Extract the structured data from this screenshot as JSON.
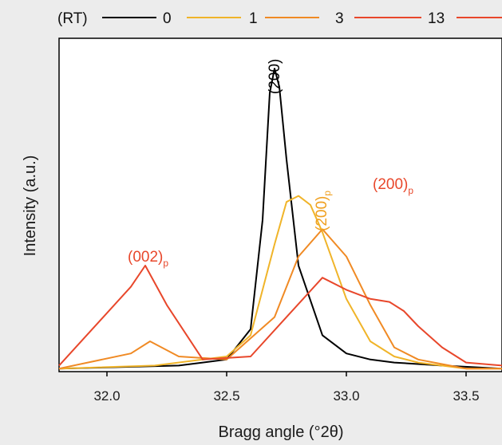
{
  "chart_data": {
    "type": "line",
    "title": "",
    "xlabel": "Bragg angle (°2θ)",
    "ylabel": "Intensity (a.u.)",
    "xlim": [
      31.8,
      33.65
    ],
    "ylim": [
      0,
      1.1
    ],
    "xticks": [
      "32.0",
      "32.5",
      "33.0",
      "33.5"
    ],
    "xtick_values": [
      32.0,
      32.5,
      33.0,
      33.5
    ],
    "legend_placement": "top (above plot)",
    "grid": false,
    "legend_title": "(RT)",
    "series": [
      {
        "name": "0",
        "color": "#000000",
        "x": [
          31.8,
          32.3,
          32.5,
          32.6,
          32.65,
          32.68,
          32.7,
          32.72,
          32.75,
          32.8,
          32.9,
          33.0,
          33.1,
          33.2,
          33.4,
          33.65
        ],
        "y": [
          0.01,
          0.02,
          0.04,
          0.14,
          0.5,
          0.92,
          1.0,
          0.94,
          0.7,
          0.35,
          0.12,
          0.06,
          0.04,
          0.03,
          0.02,
          0.01
        ]
      },
      {
        "name": "1",
        "color": "#F0B429",
        "x": [
          31.8,
          32.2,
          32.5,
          32.6,
          32.7,
          32.75,
          32.8,
          32.85,
          32.9,
          33.0,
          33.1,
          33.2,
          33.3,
          33.5,
          33.65
        ],
        "y": [
          0.01,
          0.02,
          0.05,
          0.12,
          0.42,
          0.56,
          0.58,
          0.55,
          0.46,
          0.24,
          0.1,
          0.05,
          0.03,
          0.01,
          0.01
        ]
      },
      {
        "name": "3",
        "color": "#F08A24",
        "x": [
          31.8,
          32.1,
          32.18,
          32.3,
          32.5,
          32.7,
          32.8,
          32.9,
          33.0,
          33.1,
          33.2,
          33.3,
          33.5,
          33.65
        ],
        "y": [
          0.01,
          0.06,
          0.1,
          0.05,
          0.04,
          0.18,
          0.38,
          0.47,
          0.38,
          0.22,
          0.08,
          0.04,
          0.01,
          0.01
        ]
      },
      {
        "name": "13",
        "color": "#E8472B",
        "x": [
          31.8,
          32.1,
          32.16,
          32.25,
          32.4,
          32.6,
          32.75,
          32.9,
          33.0,
          33.1,
          33.18,
          33.24,
          33.3,
          33.4,
          33.5,
          33.65
        ],
        "y": [
          0.02,
          0.28,
          0.35,
          0.22,
          0.04,
          0.05,
          0.18,
          0.31,
          0.27,
          0.24,
          0.23,
          0.2,
          0.15,
          0.08,
          0.03,
          0.02
        ]
      }
    ],
    "annotations": [
      {
        "text": "(200)",
        "sub": "",
        "color": "#000000"
      },
      {
        "text": "(200)",
        "sub": "p",
        "color": "#F0A020"
      },
      {
        "text": "(200)",
        "sub": "p",
        "color": "#E8472B"
      },
      {
        "text": "(002)",
        "sub": "p",
        "color": "#E8472B"
      }
    ]
  }
}
